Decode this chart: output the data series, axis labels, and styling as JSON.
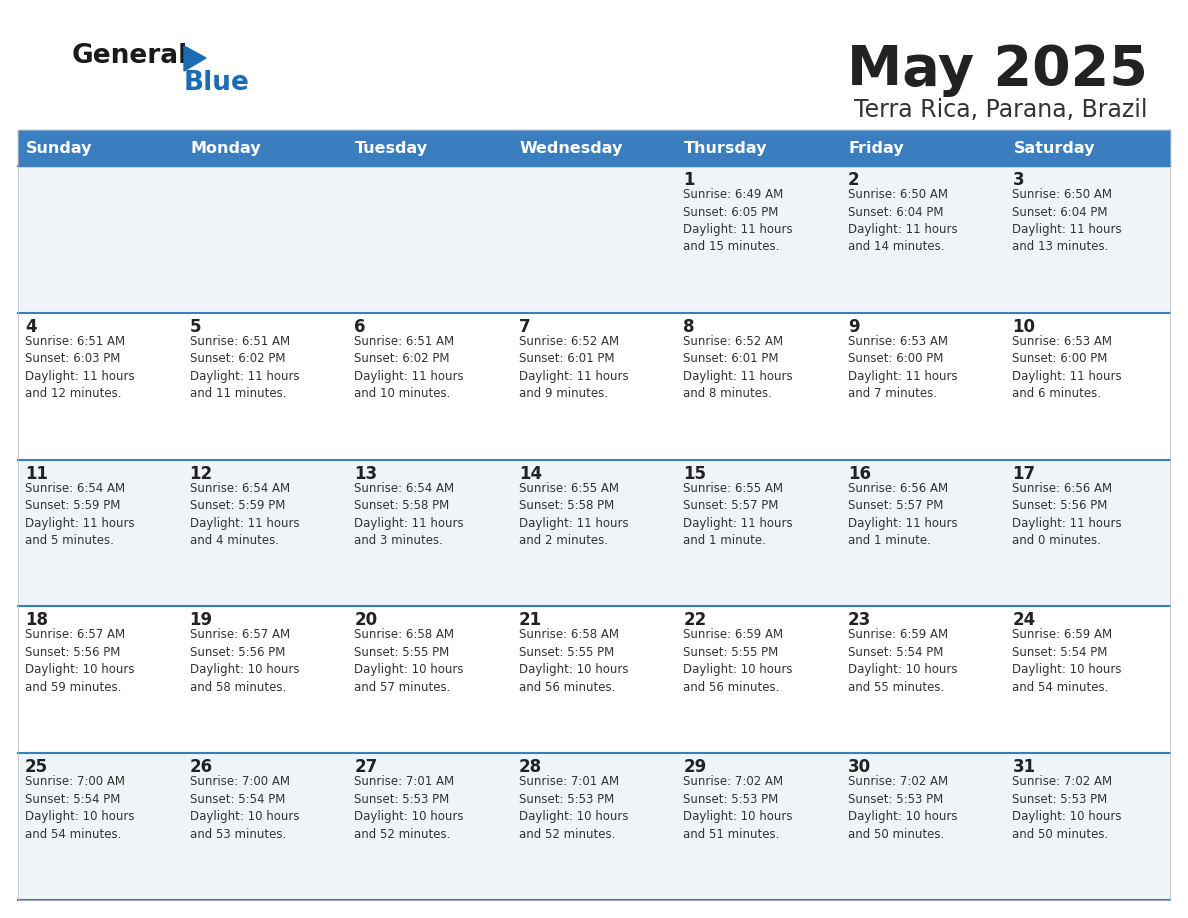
{
  "title": "May 2025",
  "subtitle": "Terra Rica, Parana, Brazil",
  "header_color": "#3a7ebf",
  "header_text_color": "#ffffff",
  "cell_bg_even": "#f0f4f8",
  "cell_bg_odd": "#ffffff",
  "day_headers": [
    "Sunday",
    "Monday",
    "Tuesday",
    "Wednesday",
    "Thursday",
    "Friday",
    "Saturday"
  ],
  "title_color": "#222222",
  "subtitle_color": "#333333",
  "logo_color": "#1a6db5",
  "weeks": [
    {
      "days": [
        {
          "day": null,
          "info": null
        },
        {
          "day": null,
          "info": null
        },
        {
          "day": null,
          "info": null
        },
        {
          "day": null,
          "info": null
        },
        {
          "day": 1,
          "info": "Sunrise: 6:49 AM\nSunset: 6:05 PM\nDaylight: 11 hours\nand 15 minutes."
        },
        {
          "day": 2,
          "info": "Sunrise: 6:50 AM\nSunset: 6:04 PM\nDaylight: 11 hours\nand 14 minutes."
        },
        {
          "day": 3,
          "info": "Sunrise: 6:50 AM\nSunset: 6:04 PM\nDaylight: 11 hours\nand 13 minutes."
        }
      ]
    },
    {
      "days": [
        {
          "day": 4,
          "info": "Sunrise: 6:51 AM\nSunset: 6:03 PM\nDaylight: 11 hours\nand 12 minutes."
        },
        {
          "day": 5,
          "info": "Sunrise: 6:51 AM\nSunset: 6:02 PM\nDaylight: 11 hours\nand 11 minutes."
        },
        {
          "day": 6,
          "info": "Sunrise: 6:51 AM\nSunset: 6:02 PM\nDaylight: 11 hours\nand 10 minutes."
        },
        {
          "day": 7,
          "info": "Sunrise: 6:52 AM\nSunset: 6:01 PM\nDaylight: 11 hours\nand 9 minutes."
        },
        {
          "day": 8,
          "info": "Sunrise: 6:52 AM\nSunset: 6:01 PM\nDaylight: 11 hours\nand 8 minutes."
        },
        {
          "day": 9,
          "info": "Sunrise: 6:53 AM\nSunset: 6:00 PM\nDaylight: 11 hours\nand 7 minutes."
        },
        {
          "day": 10,
          "info": "Sunrise: 6:53 AM\nSunset: 6:00 PM\nDaylight: 11 hours\nand 6 minutes."
        }
      ]
    },
    {
      "days": [
        {
          "day": 11,
          "info": "Sunrise: 6:54 AM\nSunset: 5:59 PM\nDaylight: 11 hours\nand 5 minutes."
        },
        {
          "day": 12,
          "info": "Sunrise: 6:54 AM\nSunset: 5:59 PM\nDaylight: 11 hours\nand 4 minutes."
        },
        {
          "day": 13,
          "info": "Sunrise: 6:54 AM\nSunset: 5:58 PM\nDaylight: 11 hours\nand 3 minutes."
        },
        {
          "day": 14,
          "info": "Sunrise: 6:55 AM\nSunset: 5:58 PM\nDaylight: 11 hours\nand 2 minutes."
        },
        {
          "day": 15,
          "info": "Sunrise: 6:55 AM\nSunset: 5:57 PM\nDaylight: 11 hours\nand 1 minute."
        },
        {
          "day": 16,
          "info": "Sunrise: 6:56 AM\nSunset: 5:57 PM\nDaylight: 11 hours\nand 1 minute."
        },
        {
          "day": 17,
          "info": "Sunrise: 6:56 AM\nSunset: 5:56 PM\nDaylight: 11 hours\nand 0 minutes."
        }
      ]
    },
    {
      "days": [
        {
          "day": 18,
          "info": "Sunrise: 6:57 AM\nSunset: 5:56 PM\nDaylight: 10 hours\nand 59 minutes."
        },
        {
          "day": 19,
          "info": "Sunrise: 6:57 AM\nSunset: 5:56 PM\nDaylight: 10 hours\nand 58 minutes."
        },
        {
          "day": 20,
          "info": "Sunrise: 6:58 AM\nSunset: 5:55 PM\nDaylight: 10 hours\nand 57 minutes."
        },
        {
          "day": 21,
          "info": "Sunrise: 6:58 AM\nSunset: 5:55 PM\nDaylight: 10 hours\nand 56 minutes."
        },
        {
          "day": 22,
          "info": "Sunrise: 6:59 AM\nSunset: 5:55 PM\nDaylight: 10 hours\nand 56 minutes."
        },
        {
          "day": 23,
          "info": "Sunrise: 6:59 AM\nSunset: 5:54 PM\nDaylight: 10 hours\nand 55 minutes."
        },
        {
          "day": 24,
          "info": "Sunrise: 6:59 AM\nSunset: 5:54 PM\nDaylight: 10 hours\nand 54 minutes."
        }
      ]
    },
    {
      "days": [
        {
          "day": 25,
          "info": "Sunrise: 7:00 AM\nSunset: 5:54 PM\nDaylight: 10 hours\nand 54 minutes."
        },
        {
          "day": 26,
          "info": "Sunrise: 7:00 AM\nSunset: 5:54 PM\nDaylight: 10 hours\nand 53 minutes."
        },
        {
          "day": 27,
          "info": "Sunrise: 7:01 AM\nSunset: 5:53 PM\nDaylight: 10 hours\nand 52 minutes."
        },
        {
          "day": 28,
          "info": "Sunrise: 7:01 AM\nSunset: 5:53 PM\nDaylight: 10 hours\nand 52 minutes."
        },
        {
          "day": 29,
          "info": "Sunrise: 7:02 AM\nSunset: 5:53 PM\nDaylight: 10 hours\nand 51 minutes."
        },
        {
          "day": 30,
          "info": "Sunrise: 7:02 AM\nSunset: 5:53 PM\nDaylight: 10 hours\nand 50 minutes."
        },
        {
          "day": 31,
          "info": "Sunrise: 7:02 AM\nSunset: 5:53 PM\nDaylight: 10 hours\nand 50 minutes."
        }
      ]
    }
  ]
}
